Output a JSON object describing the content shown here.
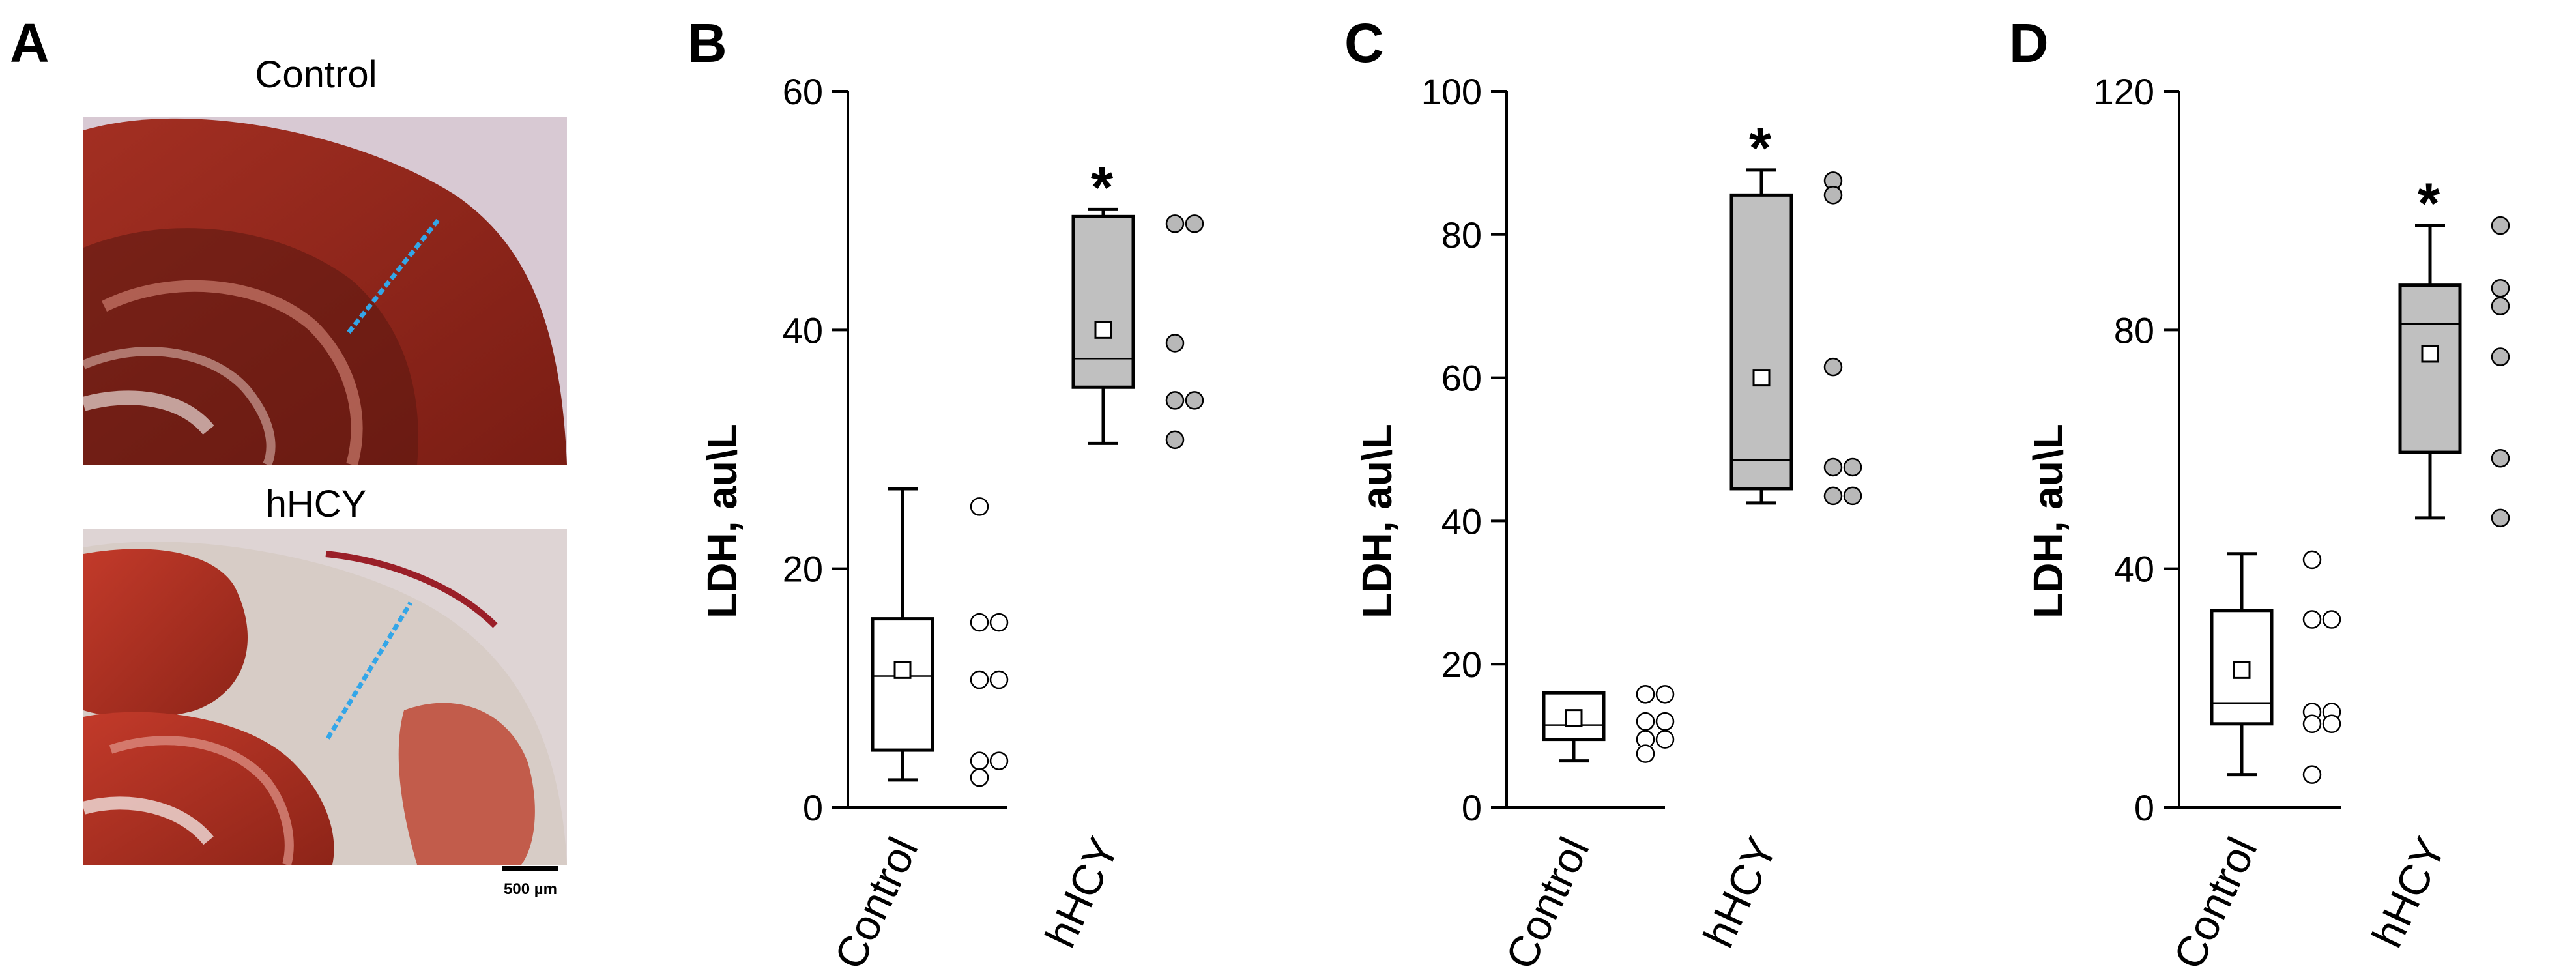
{
  "panel_a": {
    "letter": "A",
    "control_caption": "Control",
    "hhcy_caption": "hHCY",
    "scale_bar_label": "500 µm"
  },
  "chart_data": [
    {
      "panel": "B",
      "type": "box",
      "title": "",
      "ylabel": "LDH, au\\L",
      "xlabel": "",
      "ylim": [
        0,
        60
      ],
      "yticks": [
        0,
        20,
        40,
        60
      ],
      "categories": [
        "Control",
        "hHCY"
      ],
      "significance": [
        "",
        "*"
      ],
      "series": [
        {
          "name": "Control",
          "fill": "#ffffff",
          "whisker_low": 2.3,
          "q1": 4.8,
          "median": 11,
          "q3": 15.8,
          "whisker_high": 26.7,
          "mean": 11.5,
          "points": [
            25.2,
            15.5,
            15.5,
            10.7,
            10.7,
            3.9,
            3.9,
            2.5
          ]
        },
        {
          "name": "hHCY",
          "fill": "#c0c0c0",
          "whisker_low": 30.5,
          "q1": 35.2,
          "median": 37.6,
          "q3": 49.5,
          "whisker_high": 50.1,
          "mean": 40,
          "points": [
            48.9,
            48.9,
            38.9,
            34.1,
            34.1,
            30.8
          ]
        }
      ]
    },
    {
      "panel": "C",
      "type": "box",
      "title": "",
      "ylabel": "LDH, au\\L",
      "xlabel": "",
      "ylim": [
        0,
        100
      ],
      "yticks": [
        0,
        20,
        40,
        60,
        80,
        100
      ],
      "categories": [
        "Control",
        "hHCY"
      ],
      "significance": [
        "",
        "*"
      ],
      "series": [
        {
          "name": "Control",
          "fill": "#ffffff",
          "whisker_low": 6.5,
          "q1": 9.5,
          "median": 11.5,
          "q3": 16,
          "whisker_high": 16,
          "mean": 12.5,
          "points": [
            15.8,
            15.8,
            15.8,
            12,
            12,
            9.5,
            9.5,
            7.5
          ]
        },
        {
          "name": "hHCY",
          "fill": "#c0c0c0",
          "whisker_low": 42.5,
          "q1": 44.5,
          "median": 48.5,
          "q3": 85.5,
          "whisker_high": 89,
          "mean": 60,
          "points": [
            87.5,
            85.5,
            61.5,
            47.5,
            47.5,
            43.5,
            43.5
          ]
        }
      ]
    },
    {
      "panel": "D",
      "type": "box",
      "title": "",
      "ylabel": "LDH, au\\L",
      "xlabel": "",
      "ylim": [
        0,
        120
      ],
      "yticks": [
        0,
        40,
        80,
        120
      ],
      "categories": [
        "Control",
        "hHCY"
      ],
      "significance": [
        "",
        "*"
      ],
      "series": [
        {
          "name": "Control",
          "fill": "#ffffff",
          "whisker_low": 5.5,
          "q1": 14,
          "median": 17.5,
          "q3": 33,
          "whisker_high": 42.5,
          "mean": 23,
          "points": [
            41.5,
            31.5,
            31.5,
            16,
            16,
            14,
            14,
            5.5
          ]
        },
        {
          "name": "hHCY",
          "fill": "#c0c0c0",
          "whisker_low": 48.5,
          "q1": 59.5,
          "median": 81,
          "q3": 87.5,
          "whisker_high": 97.5,
          "mean": 76,
          "points": [
            97.5,
            87,
            84,
            75.5,
            58.5,
            48.5
          ]
        }
      ]
    }
  ]
}
